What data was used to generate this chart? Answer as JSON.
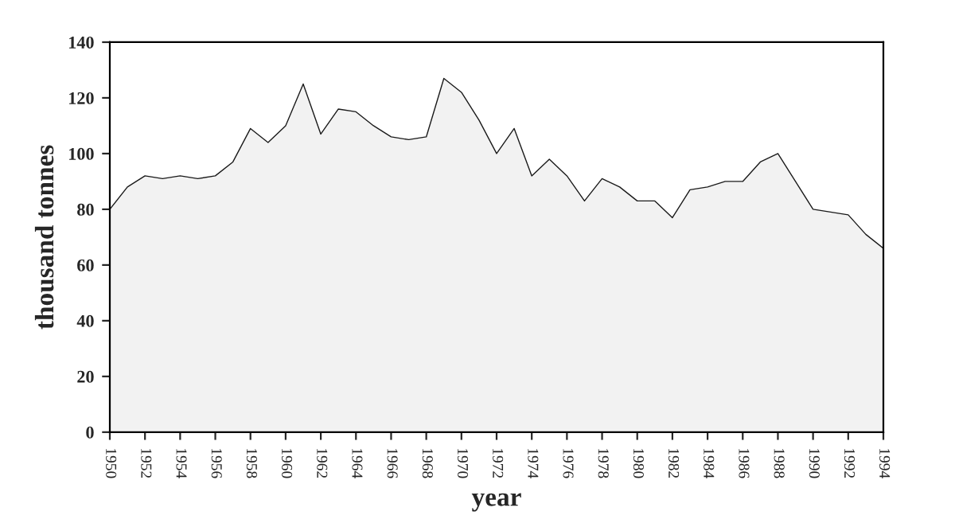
{
  "chart_data": {
    "type": "area",
    "xlabel": "year",
    "ylabel": "thousand tonnes",
    "x": [
      1950,
      1951,
      1952,
      1953,
      1954,
      1955,
      1956,
      1957,
      1958,
      1959,
      1960,
      1961,
      1962,
      1963,
      1964,
      1965,
      1966,
      1967,
      1968,
      1969,
      1970,
      1971,
      1972,
      1973,
      1974,
      1975,
      1976,
      1977,
      1978,
      1979,
      1980,
      1981,
      1982,
      1983,
      1984,
      1985,
      1986,
      1987,
      1988,
      1989,
      1990,
      1991,
      1992,
      1993,
      1994
    ],
    "series": [
      {
        "color": "#1a1a1a",
        "values": [
          80,
          88,
          92,
          91,
          92,
          91,
          92,
          97,
          109,
          104,
          110,
          125,
          107,
          116,
          115,
          110,
          106,
          105,
          106,
          127,
          122,
          112,
          100,
          109,
          92,
          98,
          92,
          83,
          91,
          88,
          83,
          83,
          77,
          87,
          88,
          90,
          90,
          97,
          100,
          90,
          80,
          79,
          78,
          71,
          66
        ]
      }
    ],
    "xlim": [
      1950,
      1994
    ],
    "xticks": [
      1950,
      1952,
      1954,
      1956,
      1958,
      1960,
      1962,
      1964,
      1966,
      1968,
      1970,
      1972,
      1974,
      1976,
      1978,
      1980,
      1982,
      1984,
      1986,
      1988,
      1990,
      1992,
      1994
    ],
    "ylim": [
      0,
      140
    ],
    "yticks": [
      0,
      20,
      40,
      60,
      80,
      100,
      120,
      140
    ],
    "grid": false,
    "legend": false
  }
}
